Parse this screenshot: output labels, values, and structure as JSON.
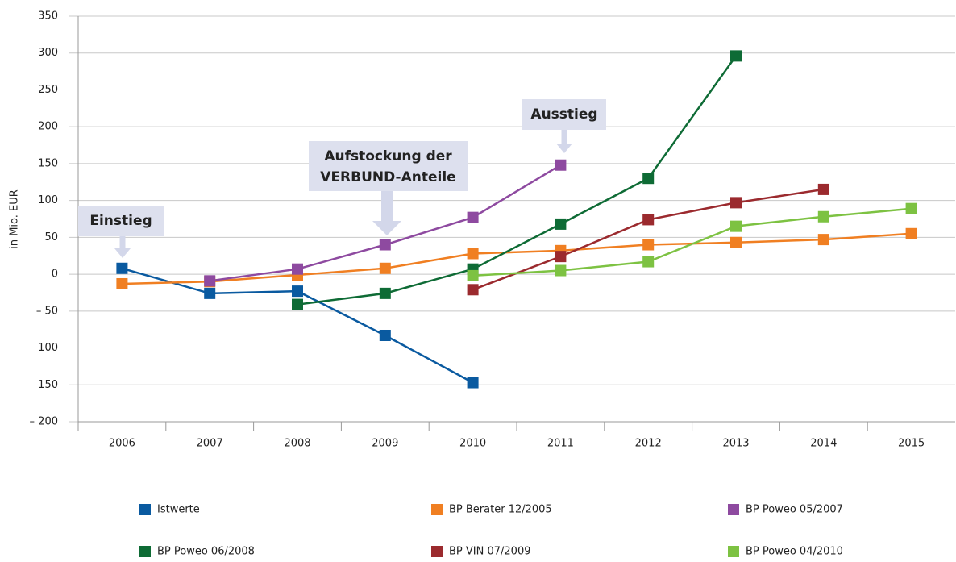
{
  "chart_data": {
    "type": "line",
    "y_axis_label": "in Mio. EUR",
    "categories": [
      "2006",
      "2007",
      "2008",
      "2009",
      "2010",
      "2011",
      "2012",
      "2013",
      "2014",
      "2015"
    ],
    "series": [
      {
        "name": "Istwerte",
        "color": "#0a5aa0",
        "values": [
          8,
          -26,
          -23,
          -83,
          -147,
          null,
          null,
          null,
          null,
          null
        ]
      },
      {
        "name": "BP Berater 12/2005",
        "color": "#f07f22",
        "values": [
          -13,
          -10,
          -1,
          8,
          28,
          32,
          40,
          43,
          47,
          55
        ]
      },
      {
        "name": "BP Poweo 05/2007",
        "color": "#8e4aa0",
        "values": [
          null,
          -9,
          7,
          40,
          77,
          148,
          null,
          null,
          null,
          null
        ]
      },
      {
        "name": "BP Poweo 06/2008",
        "color": "#0e6b35",
        "values": [
          null,
          null,
          -41,
          -26,
          7,
          68,
          130,
          296,
          null,
          null
        ]
      },
      {
        "name": "BP VIN 07/2009",
        "color": "#9b2a2e",
        "values": [
          null,
          null,
          null,
          null,
          -21,
          24,
          74,
          97,
          115,
          null
        ]
      },
      {
        "name": "BP Poweo 04/2010",
        "color": "#7dc242",
        "values": [
          null,
          null,
          null,
          null,
          -2,
          5,
          17,
          65,
          78,
          89
        ]
      }
    ],
    "ylim": [
      -200,
      350
    ],
    "yticks": [
      {
        "value": -200,
        "label": "– 200"
      },
      {
        "value": -150,
        "label": "– 150"
      },
      {
        "value": -100,
        "label": "– 100"
      },
      {
        "value": -50,
        "label": "– 50"
      },
      0,
      50,
      100,
      150,
      200,
      250,
      300,
      350
    ],
    "grid": true,
    "annotations": [
      {
        "lines": [
          "Einstieg"
        ]
      },
      {
        "lines": [
          "Aufstockung der",
          "VERBUND-Anteile"
        ]
      },
      {
        "lines": [
          "Ausstieg"
        ]
      }
    ]
  }
}
